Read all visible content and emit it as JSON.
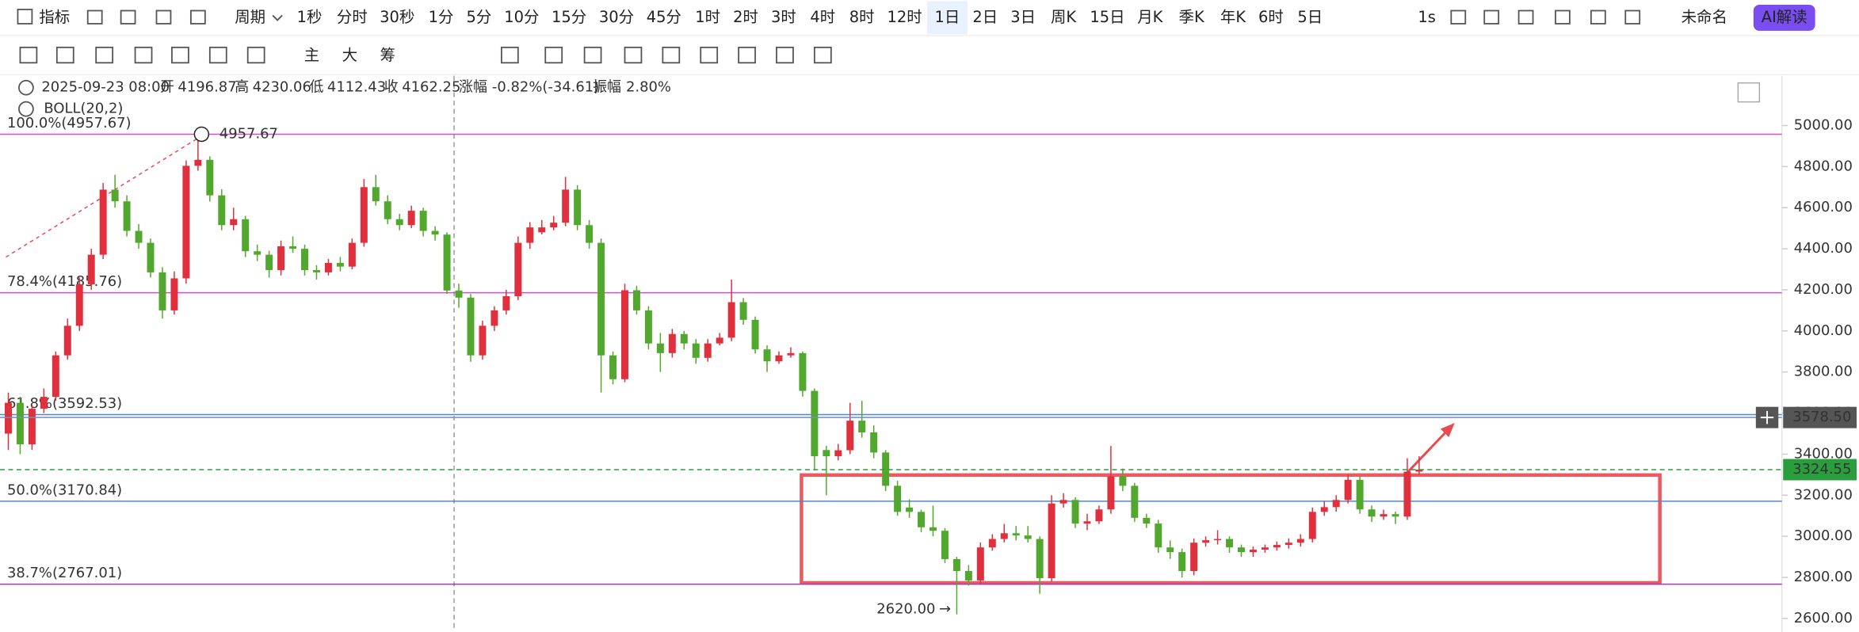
{
  "toolbar": {
    "indicator": "指标",
    "period": "周期",
    "periods": [
      "1秒",
      "分时",
      "30秒",
      "1分",
      "5分",
      "10分",
      "15分",
      "30分",
      "45分",
      "1时",
      "2时",
      "3时",
      "4时",
      "8时",
      "12时",
      "1日",
      "2日",
      "3日",
      "周K",
      "15日",
      "月K",
      "季K",
      "年K",
      "6时",
      "5日"
    ],
    "speed": "1s",
    "file": "未命名",
    "ai": "AI解读"
  },
  "tools": {
    "main": "主",
    "big": "大",
    "chip": "筹"
  },
  "info": {
    "date": "2025-09-23 08:00",
    "open": "开",
    "high": "高",
    "low": "低",
    "close": "收",
    "change_label": "涨幅",
    "change": "-0.82%(-34.61)",
    "amp_label": "振幅",
    "amp": "2.80%",
    "indicator": "BOLL(20,2)"
  },
  "chart_data": {
    "type": "candlestick",
    "up_color": "#e0303e",
    "down_color": "#52a82e",
    "ylim": [
      2537,
      5242
    ],
    "yticks": [
      {
        "value": 2600,
        "label": "2600.00"
      },
      {
        "value": 2800,
        "label": "2800.00"
      },
      {
        "value": 3000,
        "label": "3000.00"
      },
      {
        "value": 3200,
        "label": "3200.00"
      },
      {
        "value": 3400,
        "label": "3400.00"
      },
      {
        "value": 3600,
        "label": "3600.00"
      },
      {
        "value": 3800,
        "label": "3800.00"
      },
      {
        "value": 4000,
        "label": "4000.00"
      },
      {
        "value": 4200,
        "label": "4200.00"
      },
      {
        "value": 4400,
        "label": "4400.00"
      },
      {
        "value": 4600,
        "label": "4600.00"
      },
      {
        "value": 4800,
        "label": "4800.00"
      },
      {
        "value": 5000,
        "label": "5000.00"
      }
    ],
    "grid": false,
    "fib_levels": [
      {
        "label": "100.0%(4957.67)",
        "value": 4957.67,
        "color": "#d34fc3"
      },
      {
        "label": "78.4%(4185.76)",
        "value": 4185.76,
        "color": "#d34fc3"
      },
      {
        "label": "61.8%(3592.53)",
        "value": 3592.53,
        "color": "#4f86d4"
      },
      {
        "label": "50.0%(3170.84)",
        "value": 3170.84,
        "color": "#4f86d4"
      },
      {
        "label": "38.7%(2767.01)",
        "value": 2767.01,
        "color": "#9b3cc0"
      }
    ],
    "crosshair": {
      "value": 3578.5,
      "label": "3578.50"
    },
    "low_marker": {
      "value": 2620,
      "label": "2620.00"
    },
    "candles": [
      [
        3500,
        3700,
        3420,
        3650
      ],
      [
        3650,
        3680,
        3400,
        3448
      ],
      [
        3448,
        3640,
        3420,
        3621
      ],
      [
        3621,
        3720,
        3600,
        3679
      ],
      [
        3679,
        3900,
        3660,
        3881
      ],
      [
        3881,
        4060,
        3860,
        4025
      ],
      [
        4025,
        4260,
        4000,
        4227
      ],
      [
        4227,
        4400,
        4200,
        4371
      ],
      [
        4371,
        4720,
        4350,
        4688
      ],
      [
        4688,
        4760,
        4600,
        4631
      ],
      [
        4631,
        4660,
        4460,
        4487
      ],
      [
        4487,
        4520,
        4400,
        4429
      ],
      [
        4429,
        4450,
        4260,
        4285
      ],
      [
        4285,
        4310,
        4060,
        4100
      ],
      [
        4100,
        4290,
        4080,
        4256
      ],
      [
        4256,
        4830,
        4230,
        4804
      ],
      [
        4804,
        4957.67,
        4780,
        4833
      ],
      [
        4833,
        4850,
        4630,
        4660
      ],
      [
        4660,
        4690,
        4490,
        4515
      ],
      [
        4515,
        4600,
        4490,
        4544
      ],
      [
        4544,
        4560,
        4360,
        4388
      ],
      [
        4388,
        4420,
        4340,
        4371
      ],
      [
        4371,
        4390,
        4260,
        4296
      ],
      [
        4296,
        4440,
        4270,
        4412
      ],
      [
        4412,
        4460,
        4380,
        4400
      ],
      [
        4400,
        4420,
        4270,
        4296
      ],
      [
        4296,
        4320,
        4250,
        4285
      ],
      [
        4285,
        4350,
        4270,
        4331
      ],
      [
        4331,
        4360,
        4290,
        4313
      ],
      [
        4313,
        4450,
        4300,
        4429
      ],
      [
        4429,
        4740,
        4410,
        4700
      ],
      [
        4700,
        4760,
        4610,
        4631
      ],
      [
        4631,
        4660,
        4520,
        4544
      ],
      [
        4544,
        4570,
        4490,
        4515
      ],
      [
        4515,
        4610,
        4500,
        4585
      ],
      [
        4585,
        4600,
        4460,
        4487
      ],
      [
        4487,
        4510,
        4440,
        4469
      ],
      [
        4469,
        4480,
        4180,
        4196.86
      ],
      [
        4196.87,
        4230.06,
        4112.43,
        4162.25
      ],
      [
        4162.25,
        4180,
        3850,
        3881
      ],
      [
        3881,
        4050,
        3860,
        4025
      ],
      [
        4025,
        4120,
        4000,
        4100
      ],
      [
        4100,
        4200,
        4080,
        4169
      ],
      [
        4169,
        4460,
        4150,
        4429
      ],
      [
        4429,
        4530,
        4400,
        4504
      ],
      [
        4480,
        4540,
        4470,
        4504
      ],
      [
        4504,
        4560,
        4490,
        4527
      ],
      [
        4527,
        4750,
        4510,
        4688
      ],
      [
        4688,
        4710,
        4490,
        4515
      ],
      [
        4515,
        4540,
        4400,
        4429
      ],
      [
        4429,
        4450,
        3700,
        3881
      ],
      [
        3881,
        3900,
        3740,
        3765
      ],
      [
        3765,
        4230,
        3750,
        4198
      ],
      [
        4198,
        4220,
        4080,
        4100
      ],
      [
        4100,
        4120,
        3910,
        3939
      ],
      [
        3939,
        3990,
        3800,
        3892
      ],
      [
        3892,
        4010,
        3870,
        3985
      ],
      [
        3985,
        4000,
        3910,
        3939
      ],
      [
        3939,
        3960,
        3840,
        3869
      ],
      [
        3869,
        3960,
        3850,
        3939
      ],
      [
        3939,
        3990,
        3930,
        3967
      ],
      [
        3967,
        4250,
        3950,
        4140
      ],
      [
        4140,
        4160,
        4030,
        4054
      ],
      [
        4054,
        4070,
        3890,
        3910
      ],
      [
        3910,
        3930,
        3800,
        3852
      ],
      [
        3852,
        3900,
        3840,
        3881
      ],
      [
        3881,
        3920,
        3870,
        3892
      ],
      [
        3892,
        3900,
        3680,
        3708
      ],
      [
        3708,
        3720,
        3320,
        3390
      ],
      [
        3420,
        3440,
        3200,
        3390
      ],
      [
        3390,
        3450,
        3370,
        3419
      ],
      [
        3419,
        3650,
        3400,
        3563
      ],
      [
        3563,
        3660,
        3480,
        3506
      ],
      [
        3506,
        3540,
        3380,
        3408
      ],
      [
        3408,
        3420,
        3220,
        3246
      ],
      [
        3246,
        3270,
        3100,
        3119
      ],
      [
        3140,
        3180,
        3090,
        3119
      ],
      [
        3119,
        3130,
        3020,
        3044
      ],
      [
        3044,
        3150,
        3000,
        3027
      ],
      [
        3027,
        3040,
        2870,
        2889
      ],
      [
        2889,
        2900,
        2620,
        2831
      ],
      [
        2831,
        2860,
        2760,
        2785
      ],
      [
        2785,
        2970,
        2770,
        2946
      ],
      [
        2946,
        3010,
        2930,
        2987
      ],
      [
        2987,
        3060,
        2970,
        3015
      ],
      [
        3015,
        3050,
        2980,
        3004
      ],
      [
        3004,
        3050,
        2970,
        2987
      ],
      [
        2987,
        3000,
        2720,
        2796
      ],
      [
        2796,
        3200,
        2780,
        3160
      ],
      [
        3160,
        3210,
        3140,
        3177
      ],
      [
        3177,
        3190,
        3040,
        3062
      ],
      [
        3062,
        3110,
        3030,
        3073
      ],
      [
        3073,
        3150,
        3060,
        3131
      ],
      [
        3131,
        3440,
        3110,
        3292
      ],
      [
        3292,
        3330,
        3220,
        3246
      ],
      [
        3246,
        3260,
        3070,
        3090
      ],
      [
        3090,
        3110,
        3040,
        3062
      ],
      [
        3062,
        3080,
        2920,
        2946
      ],
      [
        2946,
        2980,
        2890,
        2923
      ],
      [
        2923,
        2940,
        2800,
        2831
      ],
      [
        2831,
        2990,
        2810,
        2969
      ],
      [
        2969,
        3000,
        2950,
        2981
      ],
      [
        2981,
        3030,
        2960,
        2987
      ],
      [
        2987,
        3000,
        2920,
        2946
      ],
      [
        2946,
        2960,
        2900,
        2923
      ],
      [
        2923,
        2950,
        2900,
        2935
      ],
      [
        2935,
        2960,
        2920,
        2946
      ],
      [
        2946,
        2975,
        2930,
        2958
      ],
      [
        2958,
        2990,
        2940,
        2969
      ],
      [
        2969,
        3010,
        2950,
        2987
      ],
      [
        2987,
        3140,
        2970,
        3119
      ],
      [
        3119,
        3170,
        3100,
        3142
      ],
      [
        3142,
        3200,
        3120,
        3177
      ],
      [
        3177,
        3300,
        3160,
        3275
      ],
      [
        3275,
        3290,
        3110,
        3131
      ],
      [
        3131,
        3150,
        3070,
        3096
      ],
      [
        3096,
        3130,
        3080,
        3108
      ],
      [
        3108,
        3120,
        3060,
        3096
      ],
      [
        3096,
        3380,
        3080,
        3315
      ],
      [
        3315,
        3390,
        3300,
        3324.55
      ]
    ]
  }
}
